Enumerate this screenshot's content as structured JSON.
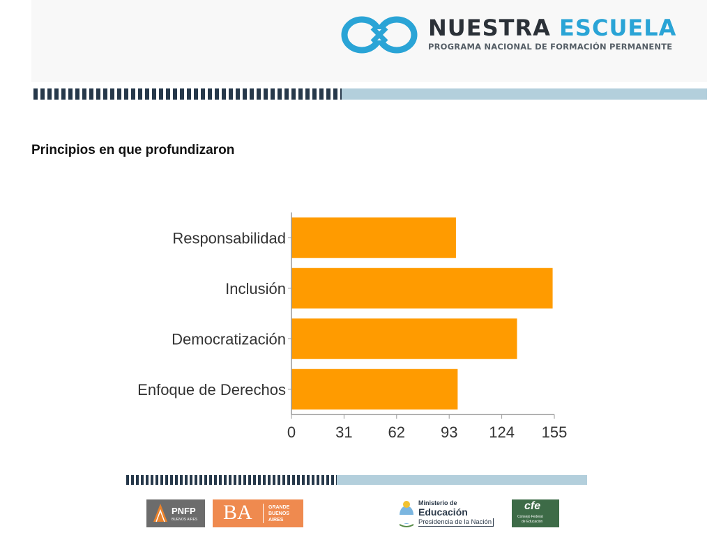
{
  "header": {
    "logo_title_part1": "NUESTRA",
    "logo_title_part2": "ESCUELA",
    "logo_subtitle": "PROGRAMA NACIONAL DE FORMACIÓN PERMANENTE"
  },
  "page_title": "Principios  en que profundizaron",
  "chart_data": {
    "type": "bar",
    "orientation": "horizontal",
    "title": "",
    "xlabel": "",
    "ylabel": "",
    "categories": [
      "Responsabilidad",
      "Inclusión",
      "Democratización",
      "Enfoque de Derechos"
    ],
    "values": [
      97,
      154,
      133,
      98
    ],
    "xticks": [
      "0",
      "31",
      "62",
      "93",
      "124",
      "155"
    ],
    "xlim": [
      0,
      155
    ],
    "bar_color": "#ff9b00",
    "grid": false,
    "legend": "none"
  },
  "footer": {
    "pnfp_label": "PNFP",
    "pnfp_sub": "BUENOS AIRES",
    "ba_label": "BA",
    "ba_sub": [
      "GRANDE",
      "BUENOS",
      "AIRES"
    ],
    "ministerio_line1": "Ministerio de",
    "ministerio_line2": "Educación",
    "ministerio_line3": "Presidencia de la Nación",
    "cfe_label": "cfe",
    "cfe_sub": [
      "Consejo Federal",
      "de Educación"
    ]
  },
  "colors": {
    "accent_blue": "#2aa4d6",
    "dark_navy": "#26384a",
    "stripe_light": "#b3cfdc",
    "bar_orange": "#ff9b00"
  }
}
